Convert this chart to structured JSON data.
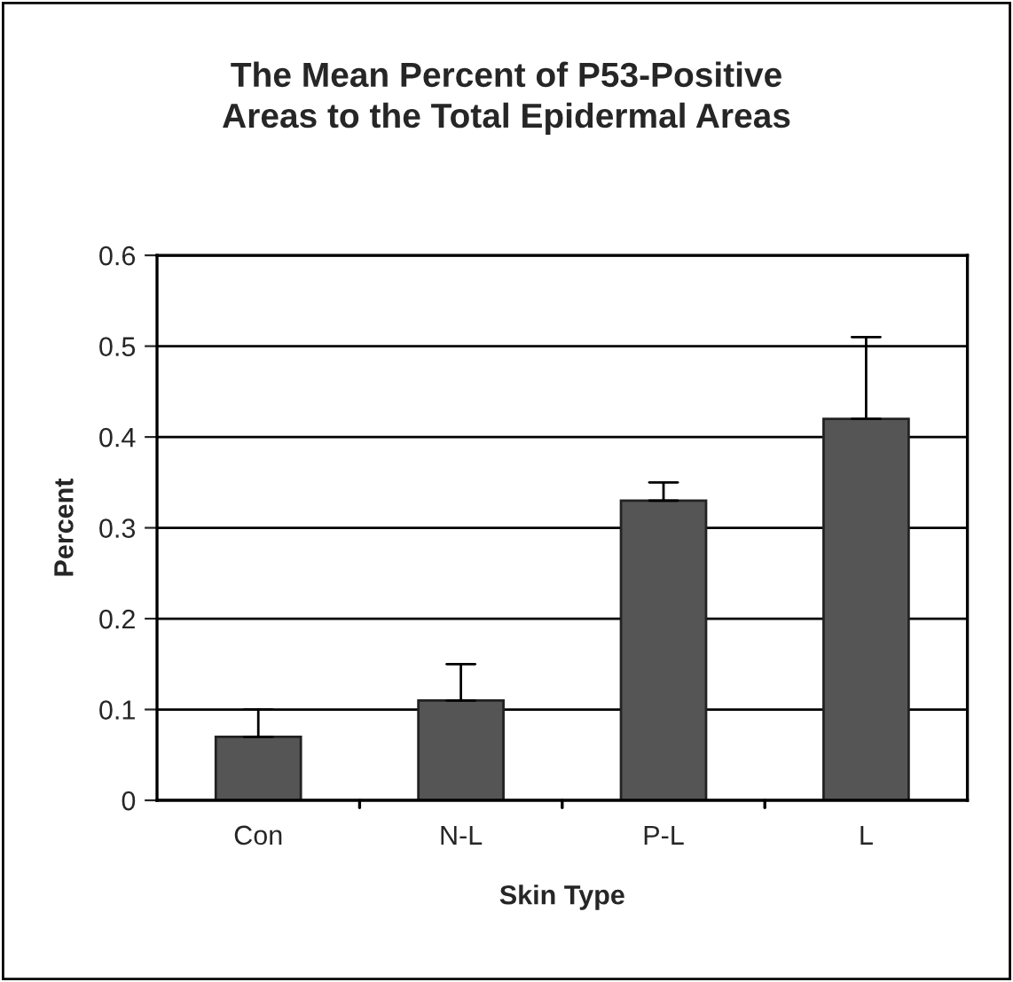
{
  "chart_data": {
    "type": "bar",
    "title": "The Mean Percent of P53-Positive\nAreas to the Total Epidermal Areas",
    "xlabel": "Skin Type",
    "ylabel": "Percent",
    "categories": [
      "Con",
      "N-L",
      "P-L",
      "L"
    ],
    "values": [
      0.07,
      0.11,
      0.33,
      0.42
    ],
    "errors": [
      [
        0.07,
        0.1
      ],
      [
        0.11,
        0.15
      ],
      [
        0.33,
        0.35
      ],
      [
        0.42,
        0.51
      ]
    ],
    "color": "#555555",
    "ylim": [
      0,
      0.6
    ],
    "yticks": [
      0,
      0.1,
      0.2,
      0.3,
      0.4,
      0.5,
      0.6
    ],
    "grid": "y",
    "legend": false
  }
}
